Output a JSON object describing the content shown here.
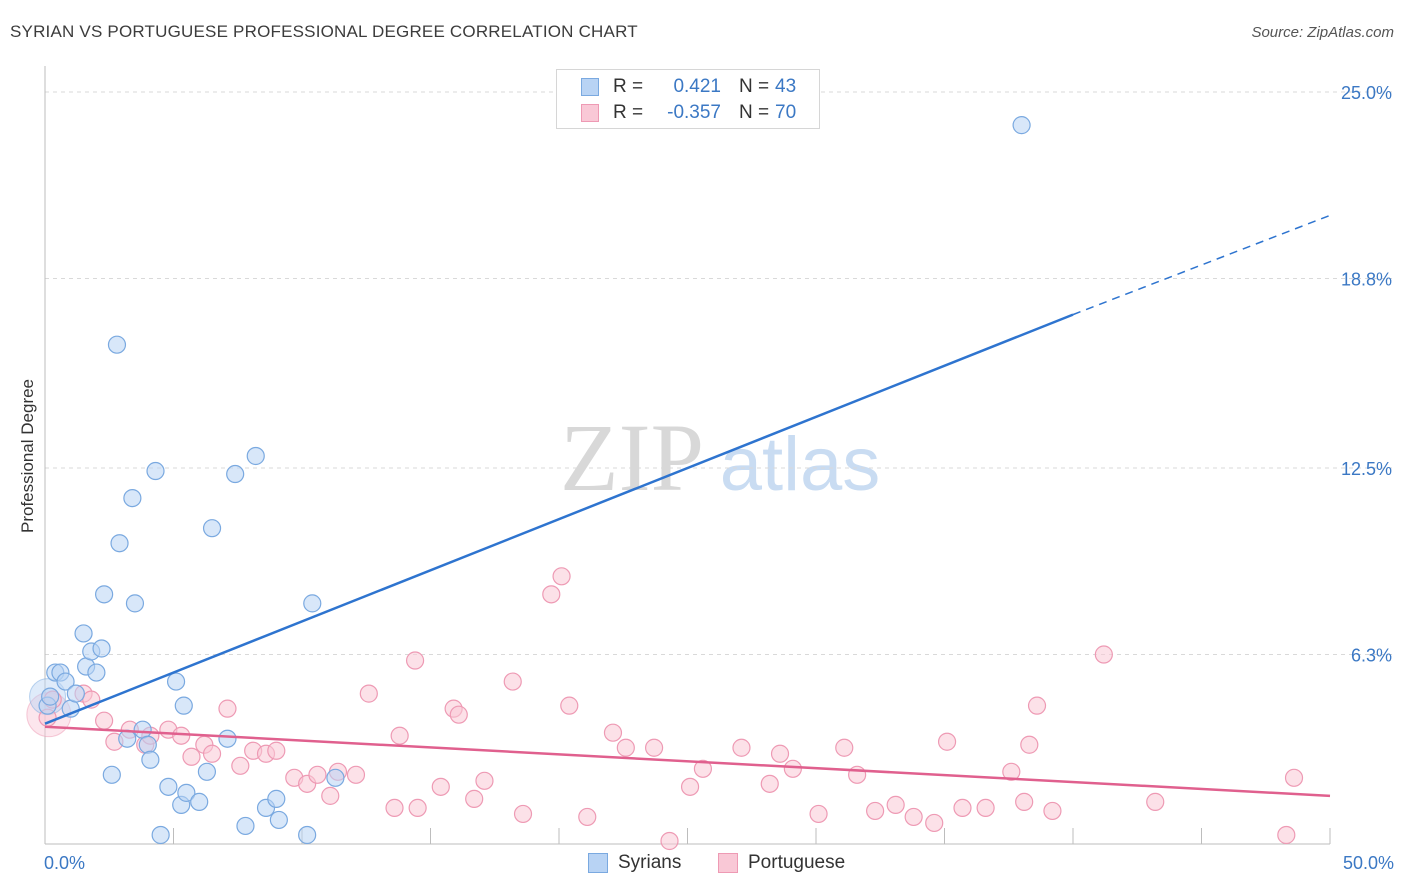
{
  "header": {
    "title": "SYRIAN VS PORTUGUESE PROFESSIONAL DEGREE CORRELATION CHART",
    "source": "Source: ZipAtlas.com"
  },
  "legend": {
    "syrians": {
      "r_label": "R =",
      "r_value": "0.421",
      "n_label": "N =",
      "n_value": "43"
    },
    "portuguese": {
      "r_label": "R =",
      "r_value": "-0.357",
      "n_label": "N =",
      "n_value": "70"
    }
  },
  "bottom_legend": {
    "syrians": "Syrians",
    "portuguese": "Portuguese"
  },
  "watermark": {
    "zip": "ZIP",
    "atlas": "atlas"
  },
  "colors": {
    "syrians_fill": "#b8d3f4",
    "syrians_stroke": "#7aa9e0",
    "syrians_line": "#2e74cf",
    "portuguese_fill": "#f9c8d6",
    "portuguese_stroke": "#ee9ab4",
    "portuguese_line": "#e0608e",
    "grid": "#d9d9d9",
    "tick_text": "#3b78c4"
  },
  "chart_data": {
    "type": "scatter",
    "title": "SYRIAN VS PORTUGUESE PROFESSIONAL DEGREE CORRELATION CHART",
    "xlabel": "",
    "ylabel": "Professional Degree",
    "xlim": [
      0,
      50
    ],
    "ylim": [
      0,
      25.5
    ],
    "x_tick_labels": [
      "0.0%",
      "50.0%"
    ],
    "y_ticks": [
      25.0,
      18.8,
      12.5,
      6.3
    ],
    "y_tick_labels": [
      "25.0%",
      "18.8%",
      "12.5%",
      "6.3%"
    ],
    "grid": true,
    "series": [
      {
        "name": "Syrians",
        "r": 0.421,
        "n": 43,
        "trend": {
          "x": [
            0,
            40
          ],
          "y": [
            4.0,
            17.6
          ],
          "dashed_extension_to": [
            50,
            20.9
          ]
        },
        "points": [
          [
            0.1,
            4.6
          ],
          [
            0.2,
            4.9
          ],
          [
            0.4,
            5.7
          ],
          [
            0.6,
            5.7
          ],
          [
            0.8,
            5.4
          ],
          [
            1.0,
            4.5
          ],
          [
            1.2,
            5.0
          ],
          [
            1.5,
            7.0
          ],
          [
            1.6,
            5.9
          ],
          [
            1.8,
            6.4
          ],
          [
            2.0,
            5.7
          ],
          [
            2.2,
            6.5
          ],
          [
            2.3,
            8.3
          ],
          [
            2.6,
            2.3
          ],
          [
            2.8,
            16.6
          ],
          [
            2.9,
            10.0
          ],
          [
            3.2,
            3.5
          ],
          [
            3.4,
            11.5
          ],
          [
            3.5,
            8.0
          ],
          [
            3.8,
            3.8
          ],
          [
            4.0,
            3.3
          ],
          [
            4.1,
            2.8
          ],
          [
            4.3,
            12.4
          ],
          [
            4.5,
            0.3
          ],
          [
            4.8,
            1.9
          ],
          [
            5.1,
            5.4
          ],
          [
            5.3,
            1.3
          ],
          [
            5.4,
            4.6
          ],
          [
            5.5,
            1.7
          ],
          [
            6.0,
            1.4
          ],
          [
            6.3,
            2.4
          ],
          [
            6.5,
            10.5
          ],
          [
            7.1,
            3.5
          ],
          [
            7.4,
            12.3
          ],
          [
            7.8,
            0.6
          ],
          [
            8.2,
            12.9
          ],
          [
            8.6,
            1.2
          ],
          [
            9.0,
            1.5
          ],
          [
            9.1,
            0.8
          ],
          [
            10.2,
            0.3
          ],
          [
            10.4,
            8.0
          ],
          [
            11.3,
            2.2
          ],
          [
            38.0,
            23.9
          ]
        ]
      },
      {
        "name": "Portuguese",
        "r": -0.357,
        "n": 70,
        "trend": {
          "x": [
            0,
            50
          ],
          "y": [
            3.9,
            1.6
          ]
        },
        "points": [
          [
            0.1,
            4.2
          ],
          [
            0.3,
            4.8
          ],
          [
            1.5,
            5.0
          ],
          [
            1.8,
            4.8
          ],
          [
            2.3,
            4.1
          ],
          [
            2.7,
            3.4
          ],
          [
            3.3,
            3.8
          ],
          [
            3.9,
            3.3
          ],
          [
            4.1,
            3.6
          ],
          [
            4.8,
            3.8
          ],
          [
            5.3,
            3.6
          ],
          [
            5.7,
            2.9
          ],
          [
            6.2,
            3.3
          ],
          [
            6.5,
            3.0
          ],
          [
            7.1,
            4.5
          ],
          [
            7.6,
            2.6
          ],
          [
            8.1,
            3.1
          ],
          [
            8.6,
            3.0
          ],
          [
            9.0,
            3.1
          ],
          [
            9.7,
            2.2
          ],
          [
            10.2,
            2.0
          ],
          [
            10.6,
            2.3
          ],
          [
            11.1,
            1.6
          ],
          [
            11.4,
            2.4
          ],
          [
            12.1,
            2.3
          ],
          [
            12.6,
            5.0
          ],
          [
            13.6,
            1.2
          ],
          [
            13.8,
            3.6
          ],
          [
            14.4,
            6.1
          ],
          [
            14.5,
            1.2
          ],
          [
            15.4,
            1.9
          ],
          [
            15.9,
            4.5
          ],
          [
            16.1,
            4.3
          ],
          [
            16.7,
            1.5
          ],
          [
            17.1,
            2.1
          ],
          [
            18.2,
            5.4
          ],
          [
            18.6,
            1.0
          ],
          [
            19.7,
            8.3
          ],
          [
            20.1,
            8.9
          ],
          [
            20.4,
            4.6
          ],
          [
            21.1,
            0.9
          ],
          [
            22.1,
            3.7
          ],
          [
            22.6,
            3.2
          ],
          [
            23.7,
            3.2
          ],
          [
            25.1,
            1.9
          ],
          [
            25.6,
            2.5
          ],
          [
            27.1,
            3.2
          ],
          [
            28.2,
            2.0
          ],
          [
            28.6,
            3.0
          ],
          [
            29.1,
            2.5
          ],
          [
            30.1,
            1.0
          ],
          [
            31.1,
            3.2
          ],
          [
            31.6,
            2.3
          ],
          [
            32.3,
            1.1
          ],
          [
            33.1,
            1.3
          ],
          [
            33.8,
            0.9
          ],
          [
            34.6,
            0.7
          ],
          [
            35.1,
            3.4
          ],
          [
            35.7,
            1.2
          ],
          [
            36.6,
            1.2
          ],
          [
            37.6,
            2.4
          ],
          [
            38.1,
            1.4
          ],
          [
            38.3,
            3.3
          ],
          [
            38.6,
            4.6
          ],
          [
            39.2,
            1.1
          ],
          [
            41.2,
            6.3
          ],
          [
            43.2,
            1.4
          ],
          [
            48.3,
            0.3
          ],
          [
            48.6,
            2.2
          ],
          [
            24.3,
            0.1
          ]
        ]
      }
    ]
  }
}
